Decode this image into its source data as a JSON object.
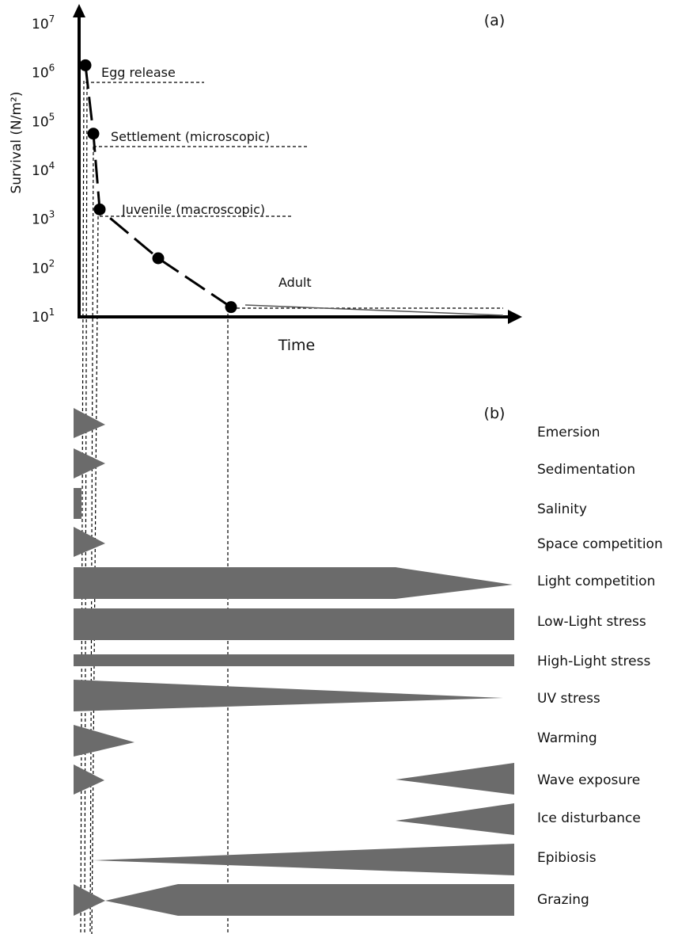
{
  "panel_a": {
    "label": "(a)",
    "y_axis_label": "Survival (N/m²)",
    "x_axis_label": "Time",
    "y_tick_base": "10",
    "y_ticks": [
      {
        "exp": "7",
        "value": 10000000
      },
      {
        "exp": "6",
        "value": 1000000
      },
      {
        "exp": "5",
        "value": 100000
      },
      {
        "exp": "4",
        "value": 10000
      },
      {
        "exp": "3",
        "value": 1000
      },
      {
        "exp": "2",
        "value": 100
      },
      {
        "exp": "1",
        "value": 10
      }
    ],
    "stages": [
      {
        "label": "Egg release"
      },
      {
        "label": "Settlement (microscopic)"
      },
      {
        "label": "Juvenile (macroscopic)"
      },
      {
        "label": ""
      },
      {
        "label": "Adult"
      }
    ],
    "points_log10": [
      6.15,
      4.75,
      3.2,
      2.2,
      1.2
    ]
  },
  "panel_b": {
    "label": "(b)",
    "factors": [
      {
        "label": "Emersion"
      },
      {
        "label": "Sedimentation"
      },
      {
        "label": "Salinity"
      },
      {
        "label": "Space competition"
      },
      {
        "label": "Light competition"
      },
      {
        "label": "Low-Light stress"
      },
      {
        "label": "High-Light stress"
      },
      {
        "label": "UV stress"
      },
      {
        "label": "Warming"
      },
      {
        "label": "Wave exposure"
      },
      {
        "label": "Ice disturbance"
      },
      {
        "label": "Epibiosis"
      },
      {
        "label": "Grazing"
      }
    ]
  },
  "colors": {
    "shape_fill": "#6b6b6b",
    "line": "#000000"
  }
}
